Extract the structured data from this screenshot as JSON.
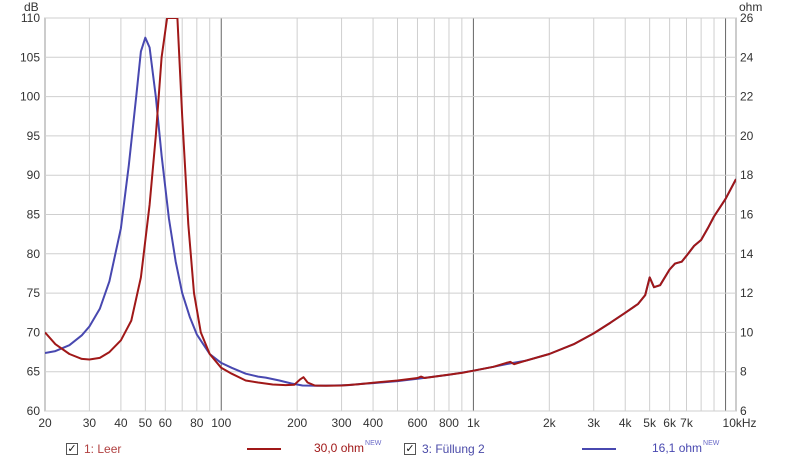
{
  "chart_data": {
    "type": "line",
    "xscale": "log",
    "xlim": [
      20,
      11000
    ],
    "ylim_left": [
      60,
      110
    ],
    "ylim_right": [
      6,
      26
    ],
    "yunit_left": "dB",
    "yunit_right": "ohm",
    "x_ticks": [
      {
        "v": 20,
        "label": "20"
      },
      {
        "v": 30,
        "label": "30"
      },
      {
        "v": 40,
        "label": "40"
      },
      {
        "v": 50,
        "label": "50"
      },
      {
        "v": 60,
        "label": "60"
      },
      {
        "v": 80,
        "label": "80"
      },
      {
        "v": 100,
        "label": "100"
      },
      {
        "v": 200,
        "label": "200"
      },
      {
        "v": 300,
        "label": "300"
      },
      {
        "v": 400,
        "label": "400"
      },
      {
        "v": 600,
        "label": "600"
      },
      {
        "v": 800,
        "label": "800"
      },
      {
        "v": 1000,
        "label": "1k"
      },
      {
        "v": 2000,
        "label": "2k"
      },
      {
        "v": 3000,
        "label": "3k"
      },
      {
        "v": 4000,
        "label": "4k"
      },
      {
        "v": 5000,
        "label": "5k"
      },
      {
        "v": 6000,
        "label": "6k"
      },
      {
        "v": 7000,
        "label": "7k"
      },
      {
        "v": 10000,
        "label": "10kHz"
      }
    ],
    "y_ticks_left": [
      "60",
      "65",
      "70",
      "75",
      "80",
      "85",
      "90",
      "95",
      "100",
      "105",
      "110"
    ],
    "y_ticks_right": [
      "6",
      "8",
      "10",
      "12",
      "14",
      "16",
      "18",
      "20",
      "22",
      "24",
      "26"
    ],
    "grid": true,
    "series": [
      {
        "name": "1: Leer",
        "value_label": "30,0 ohm",
        "color": "#a01818",
        "points": [
          [
            20,
            10.0
          ],
          [
            22,
            9.4
          ],
          [
            25,
            8.9
          ],
          [
            28,
            8.65
          ],
          [
            30,
            8.62
          ],
          [
            33,
            8.7
          ],
          [
            36,
            9.0
          ],
          [
            40,
            9.6
          ],
          [
            44,
            10.6
          ],
          [
            48,
            12.8
          ],
          [
            52,
            16.5
          ],
          [
            55,
            20.0
          ],
          [
            58,
            24.0
          ],
          [
            61,
            26.0
          ],
          [
            64,
            26.0
          ],
          [
            67,
            26.0
          ],
          [
            70,
            21.0
          ],
          [
            74,
            15.5
          ],
          [
            78,
            12.0
          ],
          [
            83,
            10.0
          ],
          [
            90,
            8.9
          ],
          [
            100,
            8.2
          ],
          [
            110,
            7.9
          ],
          [
            125,
            7.55
          ],
          [
            140,
            7.45
          ],
          [
            160,
            7.35
          ],
          [
            180,
            7.32
          ],
          [
            195,
            7.34
          ],
          [
            205,
            7.6
          ],
          [
            212,
            7.72
          ],
          [
            220,
            7.45
          ],
          [
            235,
            7.3
          ],
          [
            260,
            7.28
          ],
          [
            300,
            7.3
          ],
          [
            350,
            7.36
          ],
          [
            400,
            7.44
          ],
          [
            500,
            7.55
          ],
          [
            600,
            7.68
          ],
          [
            620,
            7.75
          ],
          [
            640,
            7.68
          ],
          [
            800,
            7.85
          ],
          [
            900,
            7.94
          ],
          [
            1000,
            8.05
          ],
          [
            1200,
            8.25
          ],
          [
            1350,
            8.45
          ],
          [
            1400,
            8.5
          ],
          [
            1450,
            8.38
          ],
          [
            1600,
            8.55
          ],
          [
            2000,
            8.9
          ],
          [
            2500,
            9.4
          ],
          [
            3000,
            9.95
          ],
          [
            3500,
            10.5
          ],
          [
            4000,
            11.0
          ],
          [
            4500,
            11.45
          ],
          [
            4800,
            11.9
          ],
          [
            5000,
            12.8
          ],
          [
            5200,
            12.3
          ],
          [
            5500,
            12.4
          ],
          [
            6000,
            13.2
          ],
          [
            6300,
            13.5
          ],
          [
            6700,
            13.6
          ],
          [
            7000,
            13.9
          ],
          [
            7500,
            14.4
          ],
          [
            8000,
            14.7
          ],
          [
            8500,
            15.3
          ],
          [
            9000,
            15.9
          ],
          [
            10000,
            16.8
          ],
          [
            11000,
            17.8
          ]
        ]
      },
      {
        "name": "3: Füllung 2",
        "value_label": "16,1 ohm",
        "color": "#4848b0",
        "points": [
          [
            20,
            8.95
          ],
          [
            22,
            9.05
          ],
          [
            25,
            9.35
          ],
          [
            28,
            9.85
          ],
          [
            30,
            10.3
          ],
          [
            33,
            11.2
          ],
          [
            36,
            12.6
          ],
          [
            40,
            15.3
          ],
          [
            43,
            18.5
          ],
          [
            46,
            22.0
          ],
          [
            48,
            24.3
          ],
          [
            50,
            25.0
          ],
          [
            52,
            24.5
          ],
          [
            55,
            22.0
          ],
          [
            58,
            19.0
          ],
          [
            62,
            15.8
          ],
          [
            66,
            13.6
          ],
          [
            70,
            12.0
          ],
          [
            75,
            10.8
          ],
          [
            80,
            9.9
          ],
          [
            90,
            8.9
          ],
          [
            100,
            8.45
          ],
          [
            110,
            8.2
          ],
          [
            125,
            7.9
          ],
          [
            140,
            7.75
          ],
          [
            150,
            7.7
          ],
          [
            170,
            7.55
          ],
          [
            190,
            7.4
          ],
          [
            210,
            7.3
          ],
          [
            240,
            7.28
          ],
          [
            280,
            7.3
          ],
          [
            320,
            7.32
          ],
          [
            360,
            7.38
          ],
          [
            400,
            7.42
          ],
          [
            500,
            7.52
          ],
          [
            600,
            7.64
          ],
          [
            800,
            7.84
          ],
          [
            1000,
            8.05
          ],
          [
            1200,
            8.25
          ],
          [
            1400,
            8.42
          ],
          [
            1600,
            8.55
          ],
          [
            2000,
            8.9
          ],
          [
            2500,
            9.4
          ],
          [
            3000,
            9.95
          ],
          [
            3500,
            10.5
          ],
          [
            4000,
            11.0
          ],
          [
            4500,
            11.45
          ],
          [
            4800,
            11.9
          ],
          [
            5000,
            12.8
          ],
          [
            5200,
            12.3
          ],
          [
            5500,
            12.4
          ],
          [
            6000,
            13.2
          ],
          [
            6300,
            13.5
          ],
          [
            6700,
            13.6
          ],
          [
            7000,
            13.9
          ],
          [
            7500,
            14.4
          ],
          [
            8000,
            14.7
          ],
          [
            8500,
            15.3
          ],
          [
            9000,
            15.9
          ],
          [
            10000,
            16.8
          ],
          [
            11000,
            17.8
          ]
        ]
      }
    ]
  },
  "legend": {
    "item1": {
      "check": "✓",
      "name": "1: Leer",
      "value": "30,0 ohm",
      "badge": "NEW"
    },
    "item2": {
      "check": "✓",
      "name": "3: Füllung 2",
      "value": "16,1 ohm",
      "badge": "NEW"
    }
  }
}
